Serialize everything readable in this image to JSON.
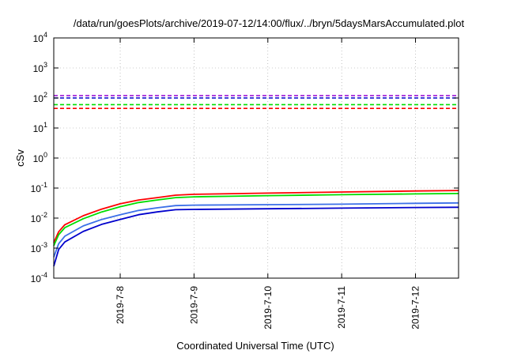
{
  "chart_data": {
    "type": "line",
    "title": "/data/run/goesPlots/archive/2019-07-12/14:00/flux/../bryn/5daysMarsAccumulated.plot",
    "xlabel": "Coordinated Universal Time (UTC)",
    "ylabel": "cSv",
    "yscale": "log",
    "ylim": [
      0.0001,
      10000
    ],
    "xlim": [
      "2019-07-07 02:24",
      "2019-07-12 14:00"
    ],
    "grid": true,
    "legend": "none",
    "y_ticks": [
      {
        "value": 0.0001,
        "base": "10",
        "exp": "-4"
      },
      {
        "value": 0.001,
        "base": "10",
        "exp": "-3"
      },
      {
        "value": 0.01,
        "base": "10",
        "exp": "-2"
      },
      {
        "value": 0.1,
        "base": "10",
        "exp": "-1"
      },
      {
        "value": 1,
        "base": "10",
        "exp": "0"
      },
      {
        "value": 10,
        "base": "10",
        "exp": "1"
      },
      {
        "value": 100,
        "base": "10",
        "exp": "2"
      },
      {
        "value": 1000,
        "base": "10",
        "exp": "3"
      },
      {
        "value": 10000,
        "base": "10",
        "exp": "4"
      }
    ],
    "x_ticks": [
      "2019-7-8",
      "2019-7-9",
      "2019-7-10",
      "2019-7-11",
      "2019-7-12"
    ],
    "series": [
      {
        "color": "#ff0000",
        "x": [
          "2019-07-07 02:24",
          "2019-07-07 04:00",
          "2019-07-07 06:00",
          "2019-07-07 12:00",
          "2019-07-07 18:00",
          "2019-07-08 00:00",
          "2019-07-08 06:00",
          "2019-07-08 12:00",
          "2019-07-08 18:00",
          "2019-07-09 00:00",
          "2019-07-10 00:00",
          "2019-07-11 00:00",
          "2019-07-12 00:00",
          "2019-07-12 14:00"
        ],
        "values": [
          0.0015,
          0.0035,
          0.006,
          0.012,
          0.02,
          0.03,
          0.04,
          0.048,
          0.058,
          0.062,
          0.068,
          0.074,
          0.08,
          0.083
        ]
      },
      {
        "color": "#00dd00",
        "x": [
          "2019-07-07 02:24",
          "2019-07-07 04:00",
          "2019-07-07 06:00",
          "2019-07-07 12:00",
          "2019-07-07 18:00",
          "2019-07-08 00:00",
          "2019-07-08 06:00",
          "2019-07-08 12:00",
          "2019-07-08 18:00",
          "2019-07-09 00:00",
          "2019-07-10 00:00",
          "2019-07-11 00:00",
          "2019-07-12 00:00",
          "2019-07-12 14:00"
        ],
        "values": [
          0.0012,
          0.0028,
          0.0048,
          0.0095,
          0.016,
          0.024,
          0.033,
          0.04,
          0.048,
          0.051,
          0.056,
          0.06,
          0.064,
          0.066
        ]
      },
      {
        "color": "#3b6fe8",
        "x": [
          "2019-07-07 02:24",
          "2019-07-07 04:00",
          "2019-07-07 06:00",
          "2019-07-07 12:00",
          "2019-07-07 18:00",
          "2019-07-08 00:00",
          "2019-07-08 06:00",
          "2019-07-08 12:00",
          "2019-07-08 18:00",
          "2019-07-09 00:00",
          "2019-07-10 00:00",
          "2019-07-11 00:00",
          "2019-07-12 00:00",
          "2019-07-12 14:00"
        ],
        "values": [
          0.0005,
          0.0014,
          0.0025,
          0.0055,
          0.009,
          0.013,
          0.018,
          0.022,
          0.026,
          0.027,
          0.028,
          0.029,
          0.031,
          0.032
        ]
      },
      {
        "color": "#0000cc",
        "x": [
          "2019-07-07 02:24",
          "2019-07-07 04:00",
          "2019-07-07 06:00",
          "2019-07-07 12:00",
          "2019-07-07 18:00",
          "2019-07-08 00:00",
          "2019-07-08 06:00",
          "2019-07-08 12:00",
          "2019-07-08 18:00",
          "2019-07-09 00:00",
          "2019-07-10 00:00",
          "2019-07-11 00:00",
          "2019-07-12 00:00",
          "2019-07-12 14:00"
        ],
        "values": [
          0.00025,
          0.0009,
          0.0016,
          0.0036,
          0.0062,
          0.009,
          0.013,
          0.016,
          0.019,
          0.0195,
          0.0205,
          0.0215,
          0.0225,
          0.023
        ]
      }
    ],
    "reference_lines": [
      {
        "color": "#9400d3",
        "value": 120
      },
      {
        "color": "#0000cc",
        "value": 100
      },
      {
        "color": "#00dd00",
        "value": 60
      },
      {
        "color": "#ff0000",
        "value": 45
      }
    ]
  }
}
